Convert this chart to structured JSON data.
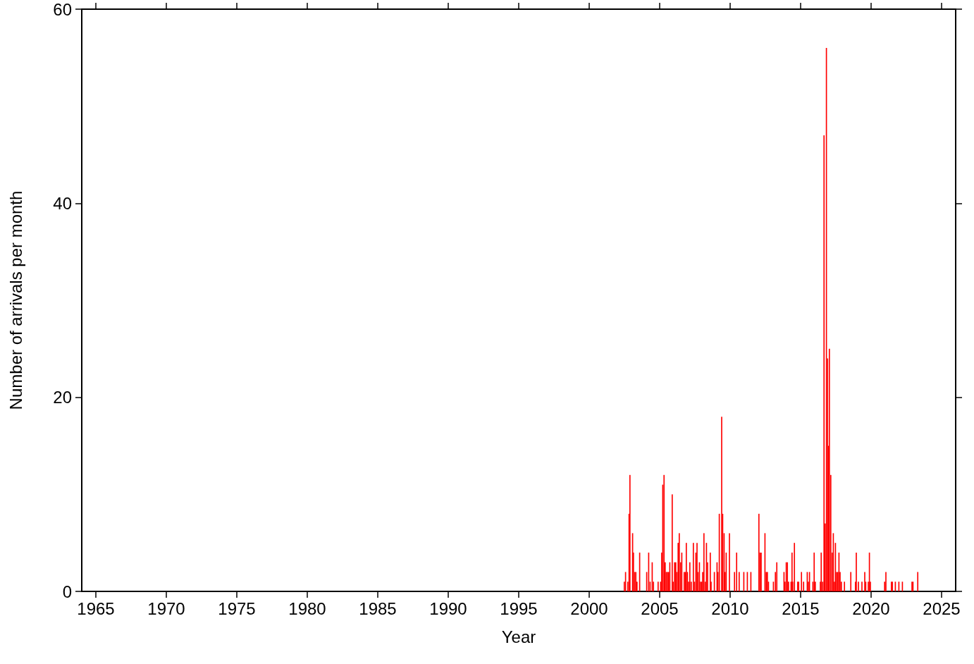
{
  "chart_data": {
    "type": "bar",
    "xlabel": "Year",
    "ylabel": "Number of arrivals per month",
    "xlim": [
      1964,
      2026
    ],
    "xticks": [
      1965,
      1970,
      1975,
      1980,
      1985,
      1990,
      1995,
      2000,
      2005,
      2010,
      2015,
      2020,
      2025
    ],
    "ylim": [
      0,
      60
    ],
    "yticks": [
      0,
      20,
      40,
      60
    ],
    "grid": false,
    "x": [
      2002.49,
      2002.58,
      2002.74,
      2002.83,
      2002.89,
      2003.08,
      2003.14,
      2003.23,
      2003.31,
      2003.39,
      2003.58,
      2004.08,
      2004.22,
      2004.32,
      2004.47,
      2004.56,
      2004.89,
      2005.07,
      2005.14,
      2005.22,
      2005.31,
      2005.39,
      2005.47,
      2005.56,
      2005.64,
      2005.72,
      2005.89,
      2005.96,
      2006.06,
      2006.14,
      2006.22,
      2006.31,
      2006.39,
      2006.49,
      2006.57,
      2006.74,
      2006.82,
      2006.89,
      2006.97,
      2007.05,
      2007.14,
      2007.24,
      2007.39,
      2007.47,
      2007.57,
      2007.65,
      2007.72,
      2007.82,
      2007.9,
      2007.99,
      2008.05,
      2008.14,
      2008.24,
      2008.32,
      2008.4,
      2008.59,
      2008.65,
      2008.88,
      2009.07,
      2009.13,
      2009.23,
      2009.4,
      2009.47,
      2009.57,
      2009.64,
      2009.72,
      2009.95,
      2010.31,
      2010.46,
      2010.64,
      2010.97,
      2011.22,
      2011.47,
      2012.04,
      2012.12,
      2012.2,
      2012.47,
      2012.56,
      2012.64,
      2012.72,
      2013.07,
      2013.21,
      2013.31,
      2013.82,
      2013.89,
      2013.98,
      2014.06,
      2014.14,
      2014.32,
      2014.39,
      2014.44,
      2014.56,
      2014.79,
      2014.86,
      2015.06,
      2015.21,
      2015.47,
      2015.55,
      2015.63,
      2015.87,
      2015.96,
      2016.04,
      2016.4,
      2016.46,
      2016.56,
      2016.66,
      2016.74,
      2016.83,
      2016.91,
      2016.99,
      2017.04,
      2017.14,
      2017.24,
      2017.32,
      2017.4,
      2017.47,
      2017.55,
      2017.64,
      2017.72,
      2017.8,
      2017.89,
      2018.11,
      2018.56,
      2018.89,
      2018.95,
      2019.1,
      2019.35,
      2019.55,
      2019.62,
      2019.8,
      2019.88,
      2019.95,
      2020.96,
      2021.05,
      2021.44,
      2021.51,
      2021.72,
      2021.97,
      2022.22,
      2022.9,
      2022.97,
      2023.31
    ],
    "values": [
      1,
      2,
      1,
      8,
      12,
      6,
      4,
      2,
      2,
      1,
      4,
      2,
      4,
      1,
      3,
      1,
      1,
      1,
      4,
      11,
      12,
      3,
      2,
      2,
      2,
      3,
      10,
      1,
      3,
      3,
      2,
      5,
      6,
      3,
      4,
      2,
      2,
      5,
      2,
      1,
      3,
      1,
      5,
      1,
      4,
      5,
      2,
      3,
      1,
      1,
      2,
      6,
      1,
      5,
      3,
      4,
      1,
      2,
      3,
      2,
      8,
      18,
      8,
      6,
      2,
      4,
      6,
      2,
      4,
      2,
      2,
      2,
      2,
      8,
      4,
      4,
      6,
      2,
      2,
      1,
      1,
      2,
      3,
      2,
      1,
      3,
      3,
      1,
      1,
      4,
      1,
      5,
      1,
      1,
      2,
      1,
      2,
      1,
      2,
      1,
      4,
      1,
      1,
      4,
      1,
      47,
      7,
      56,
      24,
      15,
      25,
      12,
      4,
      6,
      1,
      5,
      2,
      2,
      4,
      2,
      1,
      1,
      2,
      1,
      4,
      1,
      1,
      2,
      1,
      1,
      4,
      1,
      1,
      2,
      1,
      1,
      1,
      1,
      1,
      1,
      1,
      2
    ],
    "color": "#ff0000"
  }
}
